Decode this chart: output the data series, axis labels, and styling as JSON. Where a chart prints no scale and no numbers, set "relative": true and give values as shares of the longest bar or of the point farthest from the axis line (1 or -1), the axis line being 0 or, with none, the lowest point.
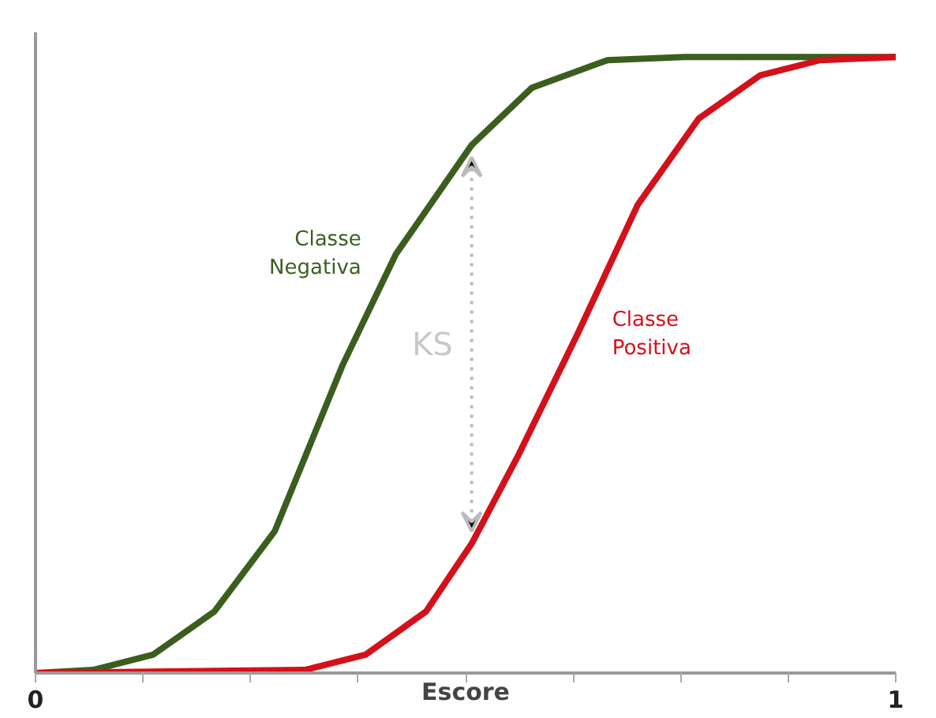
{
  "chart_data": {
    "type": "line",
    "relative": true,
    "xlabel": "Escore",
    "xlim": [
      0,
      1
    ],
    "xticks": [
      0,
      {
        "value": 0.125,
        "label": null
      },
      {
        "value": 0.25,
        "label": null
      },
      {
        "value": 0.375,
        "label": null
      },
      {
        "value": 0.5,
        "label": null
      },
      {
        "value": 0.625,
        "label": null
      },
      {
        "value": 0.75,
        "label": null
      },
      {
        "value": 0.875,
        "label": null
      },
      1
    ],
    "series": [
      {
        "name": "Classe Negativa",
        "color": "#3b5e1f",
        "x": [
          0,
          0.067,
          0.137,
          0.208,
          0.278,
          0.357,
          0.419,
          0.507,
          0.577,
          0.665,
          0.754,
          1
        ],
        "values": [
          0,
          0.005,
          0.03,
          0.1,
          0.23,
          0.5,
          0.68,
          0.857,
          0.95,
          0.995,
          1,
          1
        ]
      },
      {
        "name": "Classe Positiva",
        "color": "#d4101a",
        "x": [
          0,
          0.313,
          0.384,
          0.454,
          0.507,
          0.56,
          0.63,
          0.7,
          0.771,
          0.842,
          0.912,
          1
        ],
        "values": [
          0,
          0.005,
          0.03,
          0.1,
          0.21,
          0.35,
          0.55,
          0.76,
          0.9,
          0.97,
          0.995,
          1
        ]
      }
    ],
    "annotations": [
      "KS"
    ],
    "grid": false,
    "legend": false,
    "marker": "none",
    "line_style": "solid",
    "tick_labels": "x"
  }
}
